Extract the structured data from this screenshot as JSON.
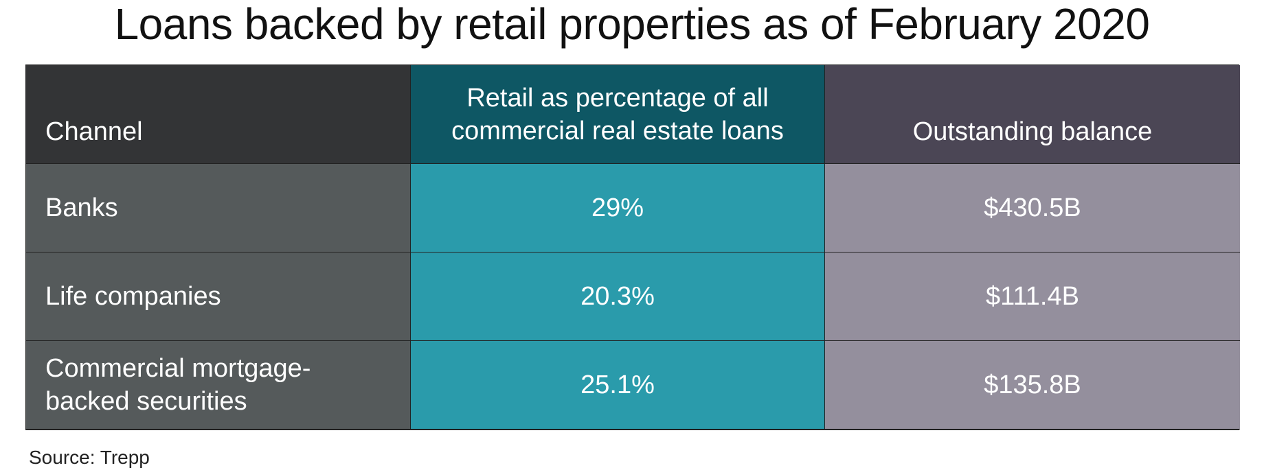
{
  "title": "Loans backed by retail properties as of February 2020",
  "chart_data": {
    "type": "table",
    "columns": [
      "Channel",
      "Retail as percentage of all commercial real estate loans",
      "Outstanding balance"
    ],
    "rows": [
      [
        "Banks",
        "29%",
        "$430.5B"
      ],
      [
        "Life companies",
        "20.3%",
        "$111.4B"
      ],
      [
        "Commercial mortgage-backed securities",
        "25.1%",
        "$135.8B"
      ]
    ],
    "colors": {
      "header_channel": "#333436",
      "header_retail": "#0e5764",
      "header_balance": "#4b4655",
      "cell_channel": "#555a5b",
      "cell_retail": "#2a9bab",
      "cell_balance": "#948f9d"
    }
  },
  "source": "Source: Trepp"
}
